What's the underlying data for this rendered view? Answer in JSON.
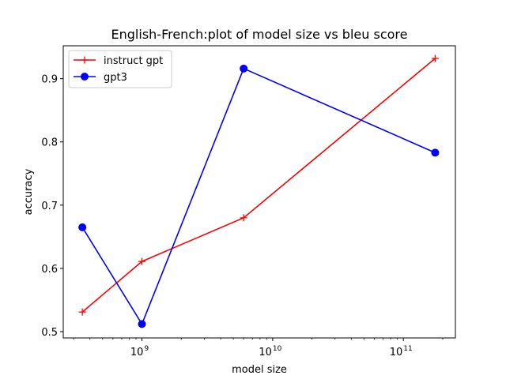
{
  "chart_data": {
    "type": "line",
    "title": "English-French:plot of model size vs bleu score",
    "xlabel": "model size",
    "ylabel": "accuracy",
    "xscale": "log",
    "xlim": [
      250000000,
      250000000000
    ],
    "ylim": [
      0.49,
      0.952
    ],
    "yticks": [
      0.5,
      0.6,
      0.7,
      0.8,
      0.9
    ],
    "ytick_labels": [
      "0.5",
      "0.6",
      "0.7",
      "0.8",
      "0.9"
    ],
    "xticks": [
      {
        "base": "10",
        "exp": "9",
        "value": 1000000000
      },
      {
        "base": "10",
        "exp": "10",
        "value": 10000000000
      },
      {
        "base": "10",
        "exp": "11",
        "value": 100000000000
      }
    ],
    "grid": false,
    "legend_position": "top-left",
    "series": [
      {
        "name": "instruct gpt",
        "color": "#ff0000",
        "marker": "plus",
        "x": [
          350000000,
          1000000000,
          6000000000,
          175000000000
        ],
        "y": [
          0.531,
          0.611,
          0.68,
          0.932
        ]
      },
      {
        "name": "gpt3",
        "color": "#0000ff",
        "marker": "circle",
        "x": [
          350000000,
          1000000000,
          6000000000,
          175000000000
        ],
        "y": [
          0.665,
          0.512,
          0.916,
          0.783
        ]
      }
    ]
  }
}
